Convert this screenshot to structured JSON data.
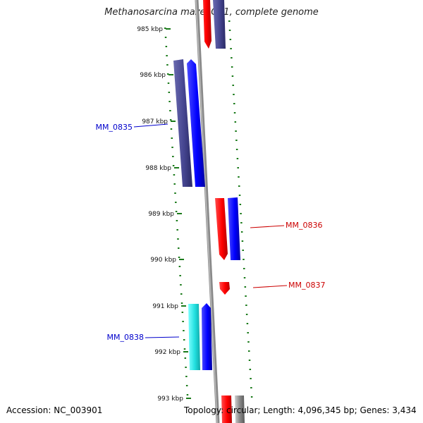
{
  "header": {
    "title": "Methanosarcina mazei Go1, complete genome"
  },
  "footer": {
    "accession": "Accession: NC_003901",
    "summary": "Topology: circular; Length: 4,096,345 bp; Genes: 3,434"
  },
  "map": {
    "kbp_labels": [
      "985 kbp",
      "986 kbp",
      "987 kbp",
      "988 kbp",
      "989 kbp",
      "990 kbp",
      "991 kbp",
      "992 kbp",
      "993 kbp"
    ],
    "colors": {
      "red": "#ff1a1a",
      "blue": "#1a1aff",
      "navy": "#4a4a90",
      "cyan": "#33e6e6",
      "gray": "#8c8c8c",
      "tick": "#1a7a1a",
      "label_blue": "#0000cc",
      "label_red": "#cc0000"
    },
    "genes": [
      {
        "name": "MM_0835",
        "side": "left"
      },
      {
        "name": "MM_0836",
        "side": "right"
      },
      {
        "name": "MM_0837",
        "side": "right"
      },
      {
        "name": "MM_0838",
        "side": "left"
      }
    ]
  }
}
